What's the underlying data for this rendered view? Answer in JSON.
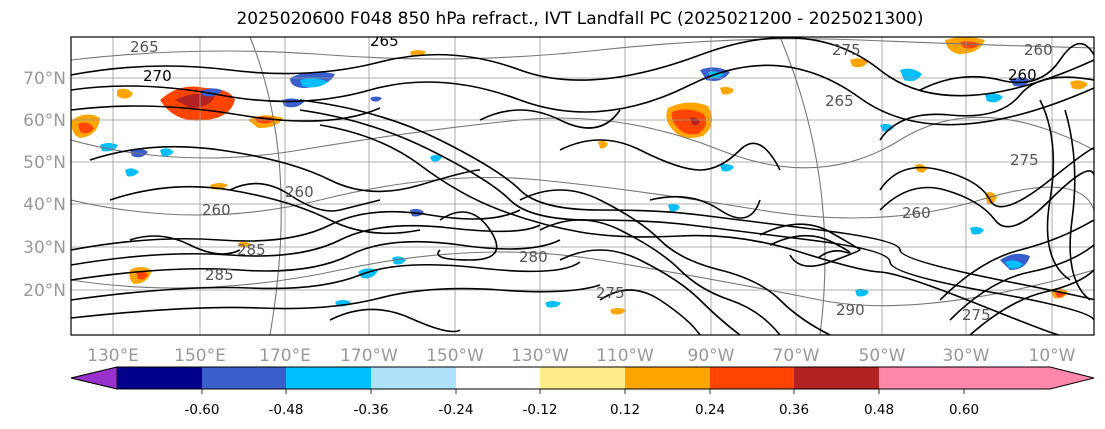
{
  "title": "2025020600 F048 850 hPa refract., IVT Landfall PC (2025021200 - 2025021300)",
  "lat_labels": [
    "70°N",
    "60°N",
    "50°N",
    "40°N",
    "30°N",
    "20°N"
  ],
  "lon_labels": [
    "130°E",
    "150°E",
    "170°E",
    "170°W",
    "150°W",
    "130°W",
    "110°W",
    "90°W",
    "70°W",
    "50°W",
    "30°W",
    "10°W"
  ],
  "colorbar": {
    "colors": [
      "#9932cc",
      "#00008b",
      "#3a5fcd",
      "#00bfff",
      "#aee1fa",
      "#ffffff",
      "#ffec8b",
      "#ffa500",
      "#ff4500",
      "#b22222",
      "#ff88aa"
    ],
    "tick_labels": [
      "-0.60",
      "-0.48",
      "-0.36",
      "-0.24",
      "-0.12",
      "0.12",
      "0.24",
      "0.36",
      "0.48",
      "0.60"
    ]
  },
  "contour_labels": [
    "265",
    "275",
    "260",
    "270",
    "265",
    "260",
    "265",
    "260",
    "275",
    "260",
    "260",
    "285",
    "280",
    "290",
    "285",
    "275",
    "275"
  ]
}
